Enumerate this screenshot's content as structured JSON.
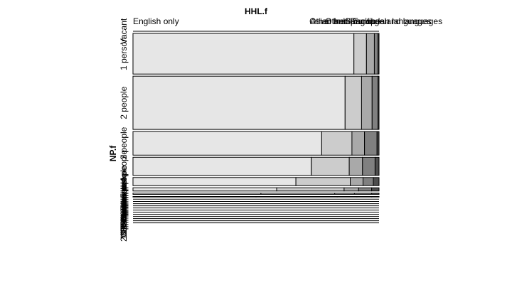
{
  "chart_data": {
    "type": "mosaic",
    "title": "",
    "xlabel": "HHL.f",
    "ylabel": "NP.f",
    "columns": [
      "English only",
      "Spanish",
      "Other Indo-European languages",
      "Asian and Pacific Island languages",
      "Other language"
    ],
    "rows": [
      {
        "label": "Vacant",
        "height": 0.0,
        "shares": [
          0.2,
          0.2,
          0.2,
          0.2,
          0.2
        ]
      },
      {
        "label": "1 person",
        "height": 0.2,
        "shares": [
          0.898,
          0.051,
          0.032,
          0.015,
          0.004
        ]
      },
      {
        "label": "2 people",
        "height": 0.262,
        "shares": [
          0.862,
          0.067,
          0.043,
          0.024,
          0.004
        ]
      },
      {
        "label": "3 people",
        "height": 0.116,
        "shares": [
          0.767,
          0.123,
          0.051,
          0.051,
          0.008
        ]
      },
      {
        "label": "4 people",
        "height": 0.089,
        "shares": [
          0.725,
          0.154,
          0.054,
          0.051,
          0.016
        ]
      },
      {
        "label": "5 people",
        "height": 0.04,
        "shares": [
          0.662,
          0.221,
          0.052,
          0.042,
          0.023
        ]
      },
      {
        "label": "6 people",
        "height": 0.016,
        "shares": [
          0.584,
          0.274,
          0.059,
          0.053,
          0.03
        ]
      },
      {
        "label": "7 people",
        "height": 0.006,
        "shares": [
          0.52,
          0.3,
          0.08,
          0.07,
          0.03
        ]
      },
      {
        "label": "8 people",
        "height": 0.0025,
        "shares": [
          0.5,
          0.33,
          0.08,
          0.06,
          0.03
        ]
      },
      {
        "label": "9 people",
        "height": 0.001,
        "shares": [
          0.45,
          0.36,
          0.09,
          0.07,
          0.03
        ]
      },
      {
        "label": "10 people",
        "height": 0.0005,
        "shares": [
          0.4,
          0.4,
          0.1,
          0.07,
          0.03
        ]
      },
      {
        "label": "11 people",
        "height": 0.0,
        "shares": [
          0.2,
          0.2,
          0.2,
          0.2,
          0.2
        ]
      },
      {
        "label": "12 people",
        "height": 0.0,
        "shares": [
          0.2,
          0.2,
          0.2,
          0.2,
          0.2
        ]
      },
      {
        "label": "13 people",
        "height": 0.0,
        "shares": [
          0.2,
          0.2,
          0.2,
          0.2,
          0.2
        ]
      },
      {
        "label": "14 people",
        "height": 0.0,
        "shares": [
          0.2,
          0.2,
          0.2,
          0.2,
          0.2
        ]
      },
      {
        "label": "15 people",
        "height": 0.0,
        "shares": [
          0.2,
          0.2,
          0.2,
          0.2,
          0.2
        ]
      },
      {
        "label": "16 people",
        "height": 0.0,
        "shares": [
          0.2,
          0.2,
          0.2,
          0.2,
          0.2
        ]
      },
      {
        "label": "17 people",
        "height": 0.0,
        "shares": [
          0.2,
          0.2,
          0.2,
          0.2,
          0.2
        ]
      },
      {
        "label": "18 people",
        "height": 0.0,
        "shares": [
          0.2,
          0.2,
          0.2,
          0.2,
          0.2
        ]
      },
      {
        "label": "19 people",
        "height": 0.0,
        "shares": [
          0.2,
          0.2,
          0.2,
          0.2,
          0.2
        ]
      },
      {
        "label": "20 people",
        "height": 0.0,
        "shares": [
          0.2,
          0.2,
          0.2,
          0.2,
          0.2
        ]
      }
    ],
    "colors": [
      "#e6e6e6",
      "#cccccc",
      "#a9a9a9",
      "#808080",
      "#4d4d4d"
    ],
    "grid": false,
    "legend": "none"
  }
}
